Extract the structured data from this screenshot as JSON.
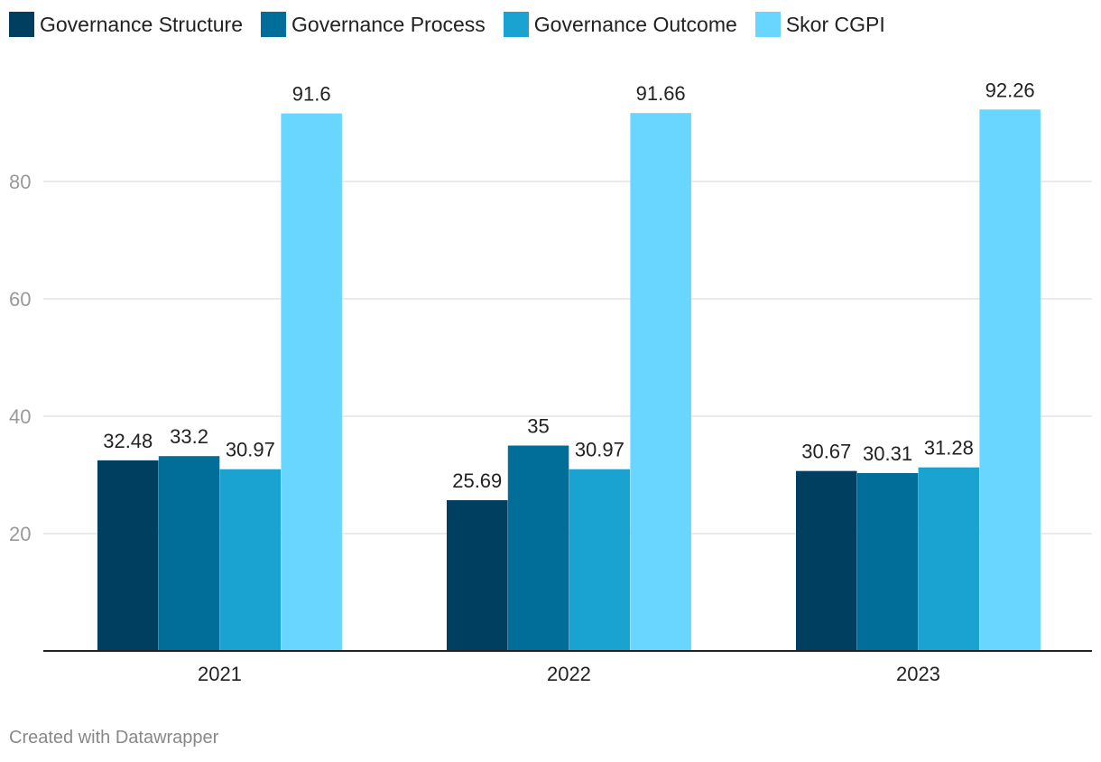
{
  "chart_data": {
    "type": "bar",
    "title": "",
    "xlabel": "",
    "ylabel": "",
    "categories": [
      "2021",
      "2022",
      "2023"
    ],
    "ylim": [
      0,
      95
    ],
    "yticks": [
      20,
      40,
      60,
      80
    ],
    "grid": true,
    "legend_position": "top-left",
    "series": [
      {
        "name": "Governance Structure",
        "color": "#003f5f",
        "values": [
          32.48,
          25.69,
          30.67
        ],
        "labels": [
          "32.48",
          "25.69",
          "30.67"
        ]
      },
      {
        "name": "Governance Process",
        "color": "#006e99",
        "values": [
          33.2,
          35,
          30.31
        ],
        "labels": [
          "33.2",
          "35",
          "30.31"
        ]
      },
      {
        "name": "Governance Outcome",
        "color": "#1aa2d0",
        "values": [
          30.97,
          30.97,
          31.28
        ],
        "labels": [
          "30.97",
          "30.97",
          "31.28"
        ]
      },
      {
        "name": "Skor CGPI",
        "color": "#69d6ff",
        "values": [
          91.6,
          91.66,
          92.26
        ],
        "labels": [
          "91.6",
          "91.66",
          "92.26"
        ]
      }
    ]
  },
  "footer": {
    "text": "Created with Datawrapper"
  }
}
